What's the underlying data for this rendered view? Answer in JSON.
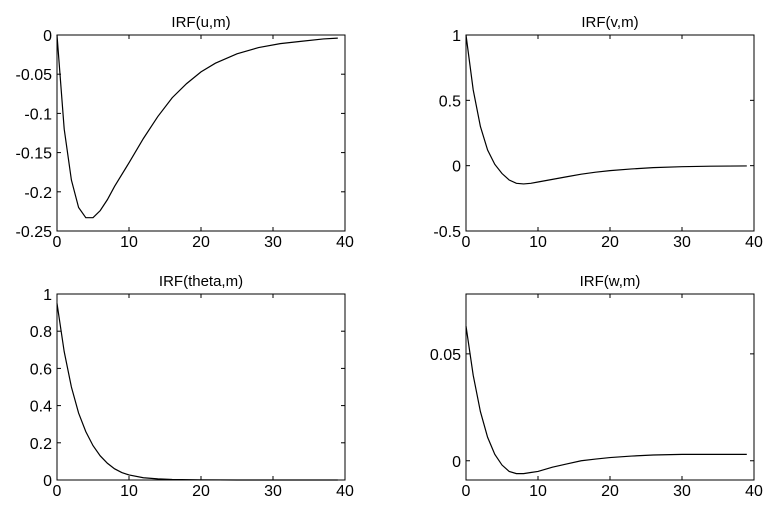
{
  "chart_data": [
    {
      "type": "line",
      "title": "IRF(u,m)",
      "xlim": [
        0,
        40
      ],
      "ylim": [
        -0.25,
        0
      ],
      "xticks": [
        "0",
        "10",
        "20",
        "30",
        "40"
      ],
      "yticks": [
        "0",
        "-0.05",
        "-0.1",
        "-0.15",
        "-0.2",
        "-0.25"
      ],
      "grid": false,
      "x": [
        0,
        1,
        2,
        3,
        4,
        5,
        6,
        7,
        8,
        10,
        12,
        14,
        16,
        18,
        20,
        22,
        25,
        28,
        31,
        34,
        37,
        39
      ],
      "y": [
        0,
        -0.12,
        -0.185,
        -0.22,
        -0.233,
        -0.233,
        -0.224,
        -0.21,
        -0.193,
        -0.163,
        -0.132,
        -0.104,
        -0.08,
        -0.062,
        -0.047,
        -0.036,
        -0.024,
        -0.016,
        -0.011,
        -0.008,
        -0.005,
        -0.004
      ]
    },
    {
      "type": "line",
      "title": "IRF(v,m)",
      "xlim": [
        0,
        40
      ],
      "ylim": [
        -0.5,
        1
      ],
      "xticks": [
        "0",
        "10",
        "20",
        "30",
        "40"
      ],
      "yticks": [
        "1",
        "0.5",
        "0",
        "-0.5"
      ],
      "grid": false,
      "x": [
        0,
        1,
        2,
        3,
        4,
        5,
        6,
        7,
        8,
        9,
        10,
        12,
        14,
        16,
        18,
        20,
        23,
        26,
        30,
        34,
        39
      ],
      "y": [
        1,
        0.58,
        0.3,
        0.12,
        0.01,
        -0.06,
        -0.11,
        -0.135,
        -0.14,
        -0.135,
        -0.125,
        -0.105,
        -0.085,
        -0.065,
        -0.05,
        -0.038,
        -0.025,
        -0.015,
        -0.008,
        -0.004,
        -0.002
      ]
    },
    {
      "type": "line",
      "title": "IRF(theta,m)",
      "xlim": [
        0,
        40
      ],
      "ylim": [
        0,
        1
      ],
      "xticks": [
        "0",
        "10",
        "20",
        "30",
        "40"
      ],
      "yticks": [
        "1",
        "0.8",
        "0.6",
        "0.4",
        "0.2",
        "0"
      ],
      "grid": false,
      "x": [
        0,
        1,
        2,
        3,
        4,
        5,
        6,
        7,
        8,
        9,
        10,
        12,
        14,
        16,
        20,
        25,
        30,
        35,
        39
      ],
      "y": [
        0.95,
        0.69,
        0.5,
        0.36,
        0.26,
        0.185,
        0.13,
        0.09,
        0.06,
        0.04,
        0.027,
        0.012,
        0.006,
        0.003,
        0.001,
        0,
        0,
        0,
        0
      ]
    },
    {
      "type": "line",
      "title": "IRF(w,m)",
      "xlim": [
        0,
        40
      ],
      "ylim": [
        -0.009,
        0.078
      ],
      "xticks": [
        "0",
        "10",
        "20",
        "30",
        "40"
      ],
      "yticks": [
        "0.05",
        "0"
      ],
      "grid": false,
      "x": [
        0,
        1,
        2,
        3,
        4,
        5,
        6,
        7,
        8,
        9,
        10,
        12,
        14,
        16,
        18,
        20,
        23,
        26,
        30,
        34,
        39
      ],
      "y": [
        0.063,
        0.04,
        0.023,
        0.011,
        0.003,
        -0.002,
        -0.005,
        -0.006,
        -0.006,
        -0.0055,
        -0.005,
        -0.003,
        -0.0015,
        0,
        0.0008,
        0.0015,
        0.0022,
        0.0027,
        0.003,
        0.003,
        0.003
      ]
    }
  ]
}
